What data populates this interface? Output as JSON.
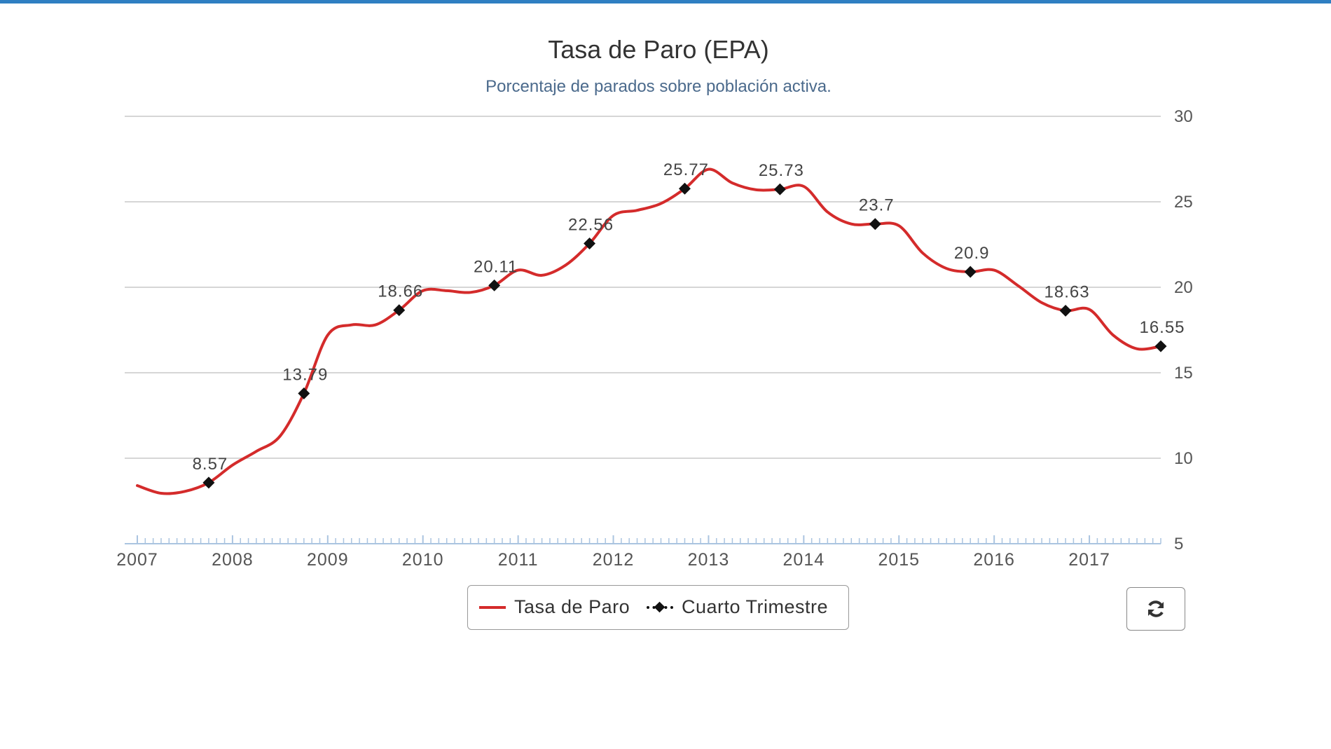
{
  "chart_data": {
    "type": "line",
    "title": "Tasa de Paro (EPA)",
    "subtitle": "Porcentaje de parados sobre población activa.",
    "xlabel": "",
    "ylabel": "",
    "x_ticks": [
      "2007",
      "2008",
      "2009",
      "2010",
      "2011",
      "2012",
      "2013",
      "2014",
      "2015",
      "2016",
      "2017"
    ],
    "y_ticks": [
      5,
      10,
      15,
      20,
      25,
      30
    ],
    "ylim": [
      5,
      30
    ],
    "xlim": [
      2007.0,
      2017.75
    ],
    "y_axis_side": "right",
    "grid": "horizontal",
    "legend_position": "bottom-center",
    "series": [
      {
        "name": "Tasa de Paro",
        "color": "#d42b2b",
        "style": "smooth-line",
        "x": [
          2007.0,
          2007.25,
          2007.5,
          2007.75,
          2008.0,
          2008.25,
          2008.5,
          2008.75,
          2009.0,
          2009.25,
          2009.5,
          2009.75,
          2010.0,
          2010.25,
          2010.5,
          2010.75,
          2011.0,
          2011.25,
          2011.5,
          2011.75,
          2012.0,
          2012.25,
          2012.5,
          2012.75,
          2013.0,
          2013.25,
          2013.5,
          2013.75,
          2014.0,
          2014.25,
          2014.5,
          2014.75,
          2015.0,
          2015.25,
          2015.5,
          2015.75,
          2016.0,
          2016.25,
          2016.5,
          2016.75,
          2017.0,
          2017.25,
          2017.5,
          2017.75
        ],
        "values": [
          8.4,
          7.95,
          8.06,
          8.57,
          9.6,
          10.4,
          11.3,
          13.79,
          17.2,
          17.8,
          17.8,
          18.66,
          19.8,
          19.8,
          19.7,
          20.11,
          21.0,
          20.7,
          21.3,
          22.56,
          24.2,
          24.5,
          24.9,
          25.77,
          26.9,
          26.1,
          25.7,
          25.73,
          25.9,
          24.4,
          23.7,
          23.7,
          23.6,
          22.0,
          21.1,
          20.9,
          21.0,
          20.1,
          19.1,
          18.63,
          18.7,
          17.2,
          16.4,
          16.55
        ]
      },
      {
        "name": "Cuarto Trimestre",
        "color": "#111111",
        "style": "diamond-markers",
        "x": [
          2007.75,
          2008.75,
          2009.75,
          2010.75,
          2011.75,
          2012.75,
          2013.75,
          2014.75,
          2015.75,
          2016.75,
          2017.75
        ],
        "values": [
          8.57,
          13.79,
          18.66,
          20.11,
          22.56,
          25.77,
          25.73,
          23.7,
          20.9,
          18.63,
          16.55
        ],
        "labels": [
          "8.57",
          "13.79",
          "18.66",
          "20.11",
          "22.56",
          "25.77",
          "25.73",
          "23.7",
          "20.9",
          "18.63",
          "16.55"
        ]
      }
    ]
  },
  "legend": {
    "items": [
      {
        "label": "Tasa de Paro"
      },
      {
        "label": "Cuarto Trimestre"
      }
    ]
  },
  "controls": {
    "refresh_icon": "refresh-icon"
  },
  "colors": {
    "accent": "#2f7fc2",
    "line": "#d42b2b",
    "marker": "#111111",
    "grid": "#c8c8c8",
    "axis": "#aac4e0",
    "title": "#333333",
    "subtitle": "#4b6a8c"
  }
}
